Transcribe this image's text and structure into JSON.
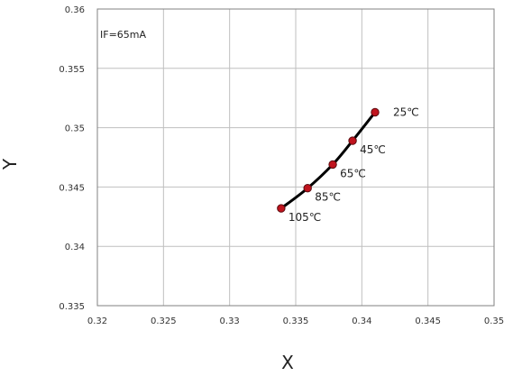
{
  "chart_data": {
    "type": "line",
    "annotation": "IF=65mA",
    "xlabel": "X",
    "ylabel": "Y",
    "xlim": [
      0.32,
      0.35
    ],
    "ylim": [
      0.335,
      0.36
    ],
    "xticks": [
      "0.32",
      "0.325",
      "0.33",
      "0.335",
      "0.34",
      "0.345",
      "0.35"
    ],
    "yticks": [
      "0.36",
      "0.355",
      "0.35",
      "0.345",
      "0.34",
      "0.335"
    ],
    "grid": true,
    "series": [
      {
        "line_color": "#000000",
        "marker_color": "#c0141e",
        "points": [
          {
            "x": 0.341,
            "y": 0.3513,
            "label": "25℃"
          },
          {
            "x": 0.3393,
            "y": 0.3489,
            "label": "45℃"
          },
          {
            "x": 0.3378,
            "y": 0.3469,
            "label": "65℃"
          },
          {
            "x": 0.3359,
            "y": 0.3449,
            "label": "85℃"
          },
          {
            "x": 0.3339,
            "y": 0.3432,
            "label": "105℃"
          }
        ]
      }
    ]
  }
}
